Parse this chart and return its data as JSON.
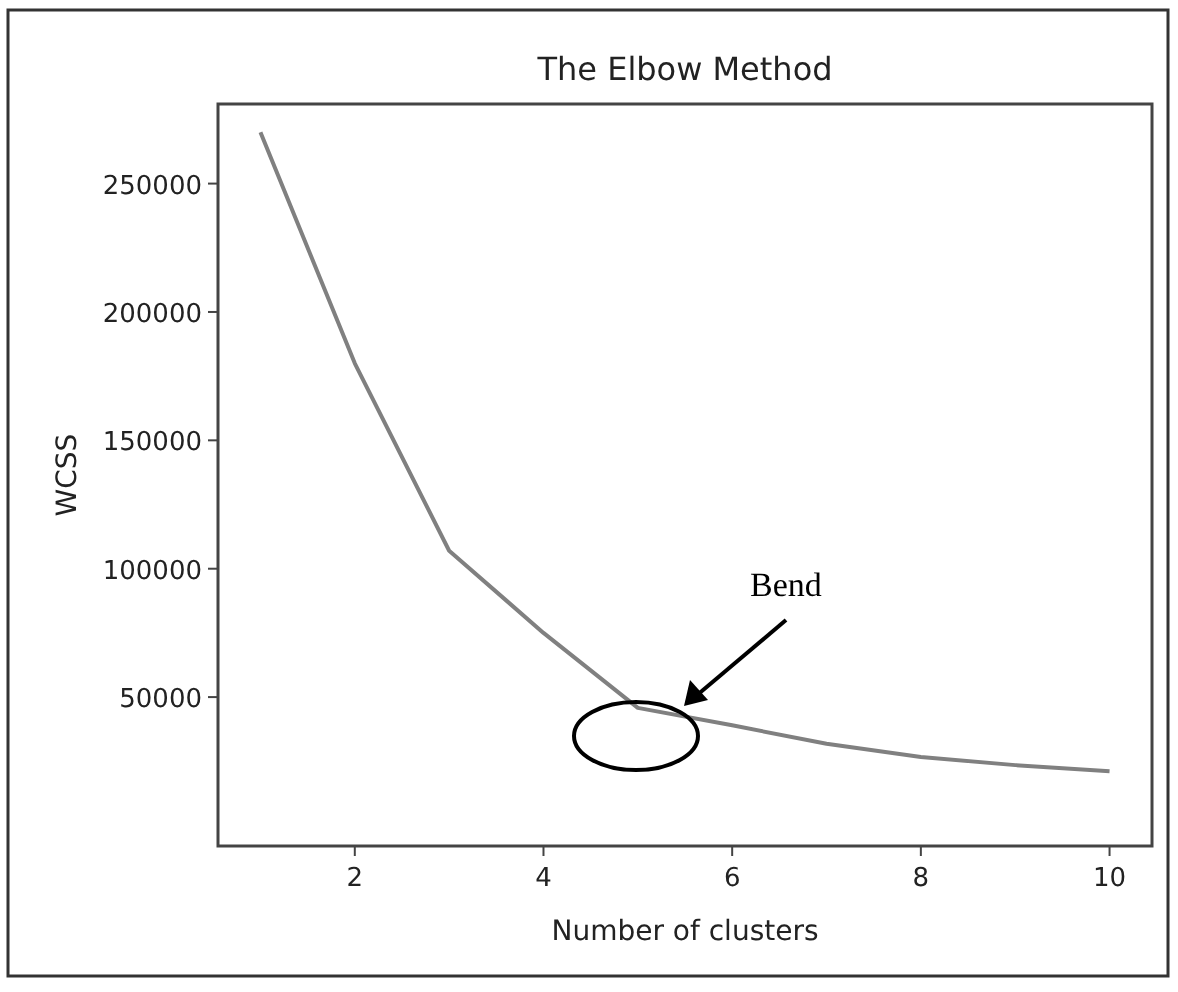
{
  "chart_data": {
    "type": "line",
    "title": "The Elbow Method",
    "xlabel": "Number of clusters",
    "ylabel": "WCSS",
    "x": [
      1,
      2,
      3,
      4,
      5,
      6,
      7,
      8,
      9,
      10
    ],
    "series": [
      {
        "color": "#808080",
        "values": [
          270000,
          180000,
          107000,
          75000,
          45800,
          39000,
          31800,
          26700,
          23500,
          21100
        ]
      }
    ],
    "xlim": [
      0.55,
      10.45
    ],
    "xticks": [
      2,
      4,
      6,
      8,
      10
    ],
    "ylim": [
      -8000,
      281000
    ],
    "yticks": [
      50000,
      100000,
      150000,
      200000,
      250000
    ],
    "annotations": [
      "Bend"
    ],
    "grid": false,
    "marker": "none",
    "line_style": "solid"
  }
}
